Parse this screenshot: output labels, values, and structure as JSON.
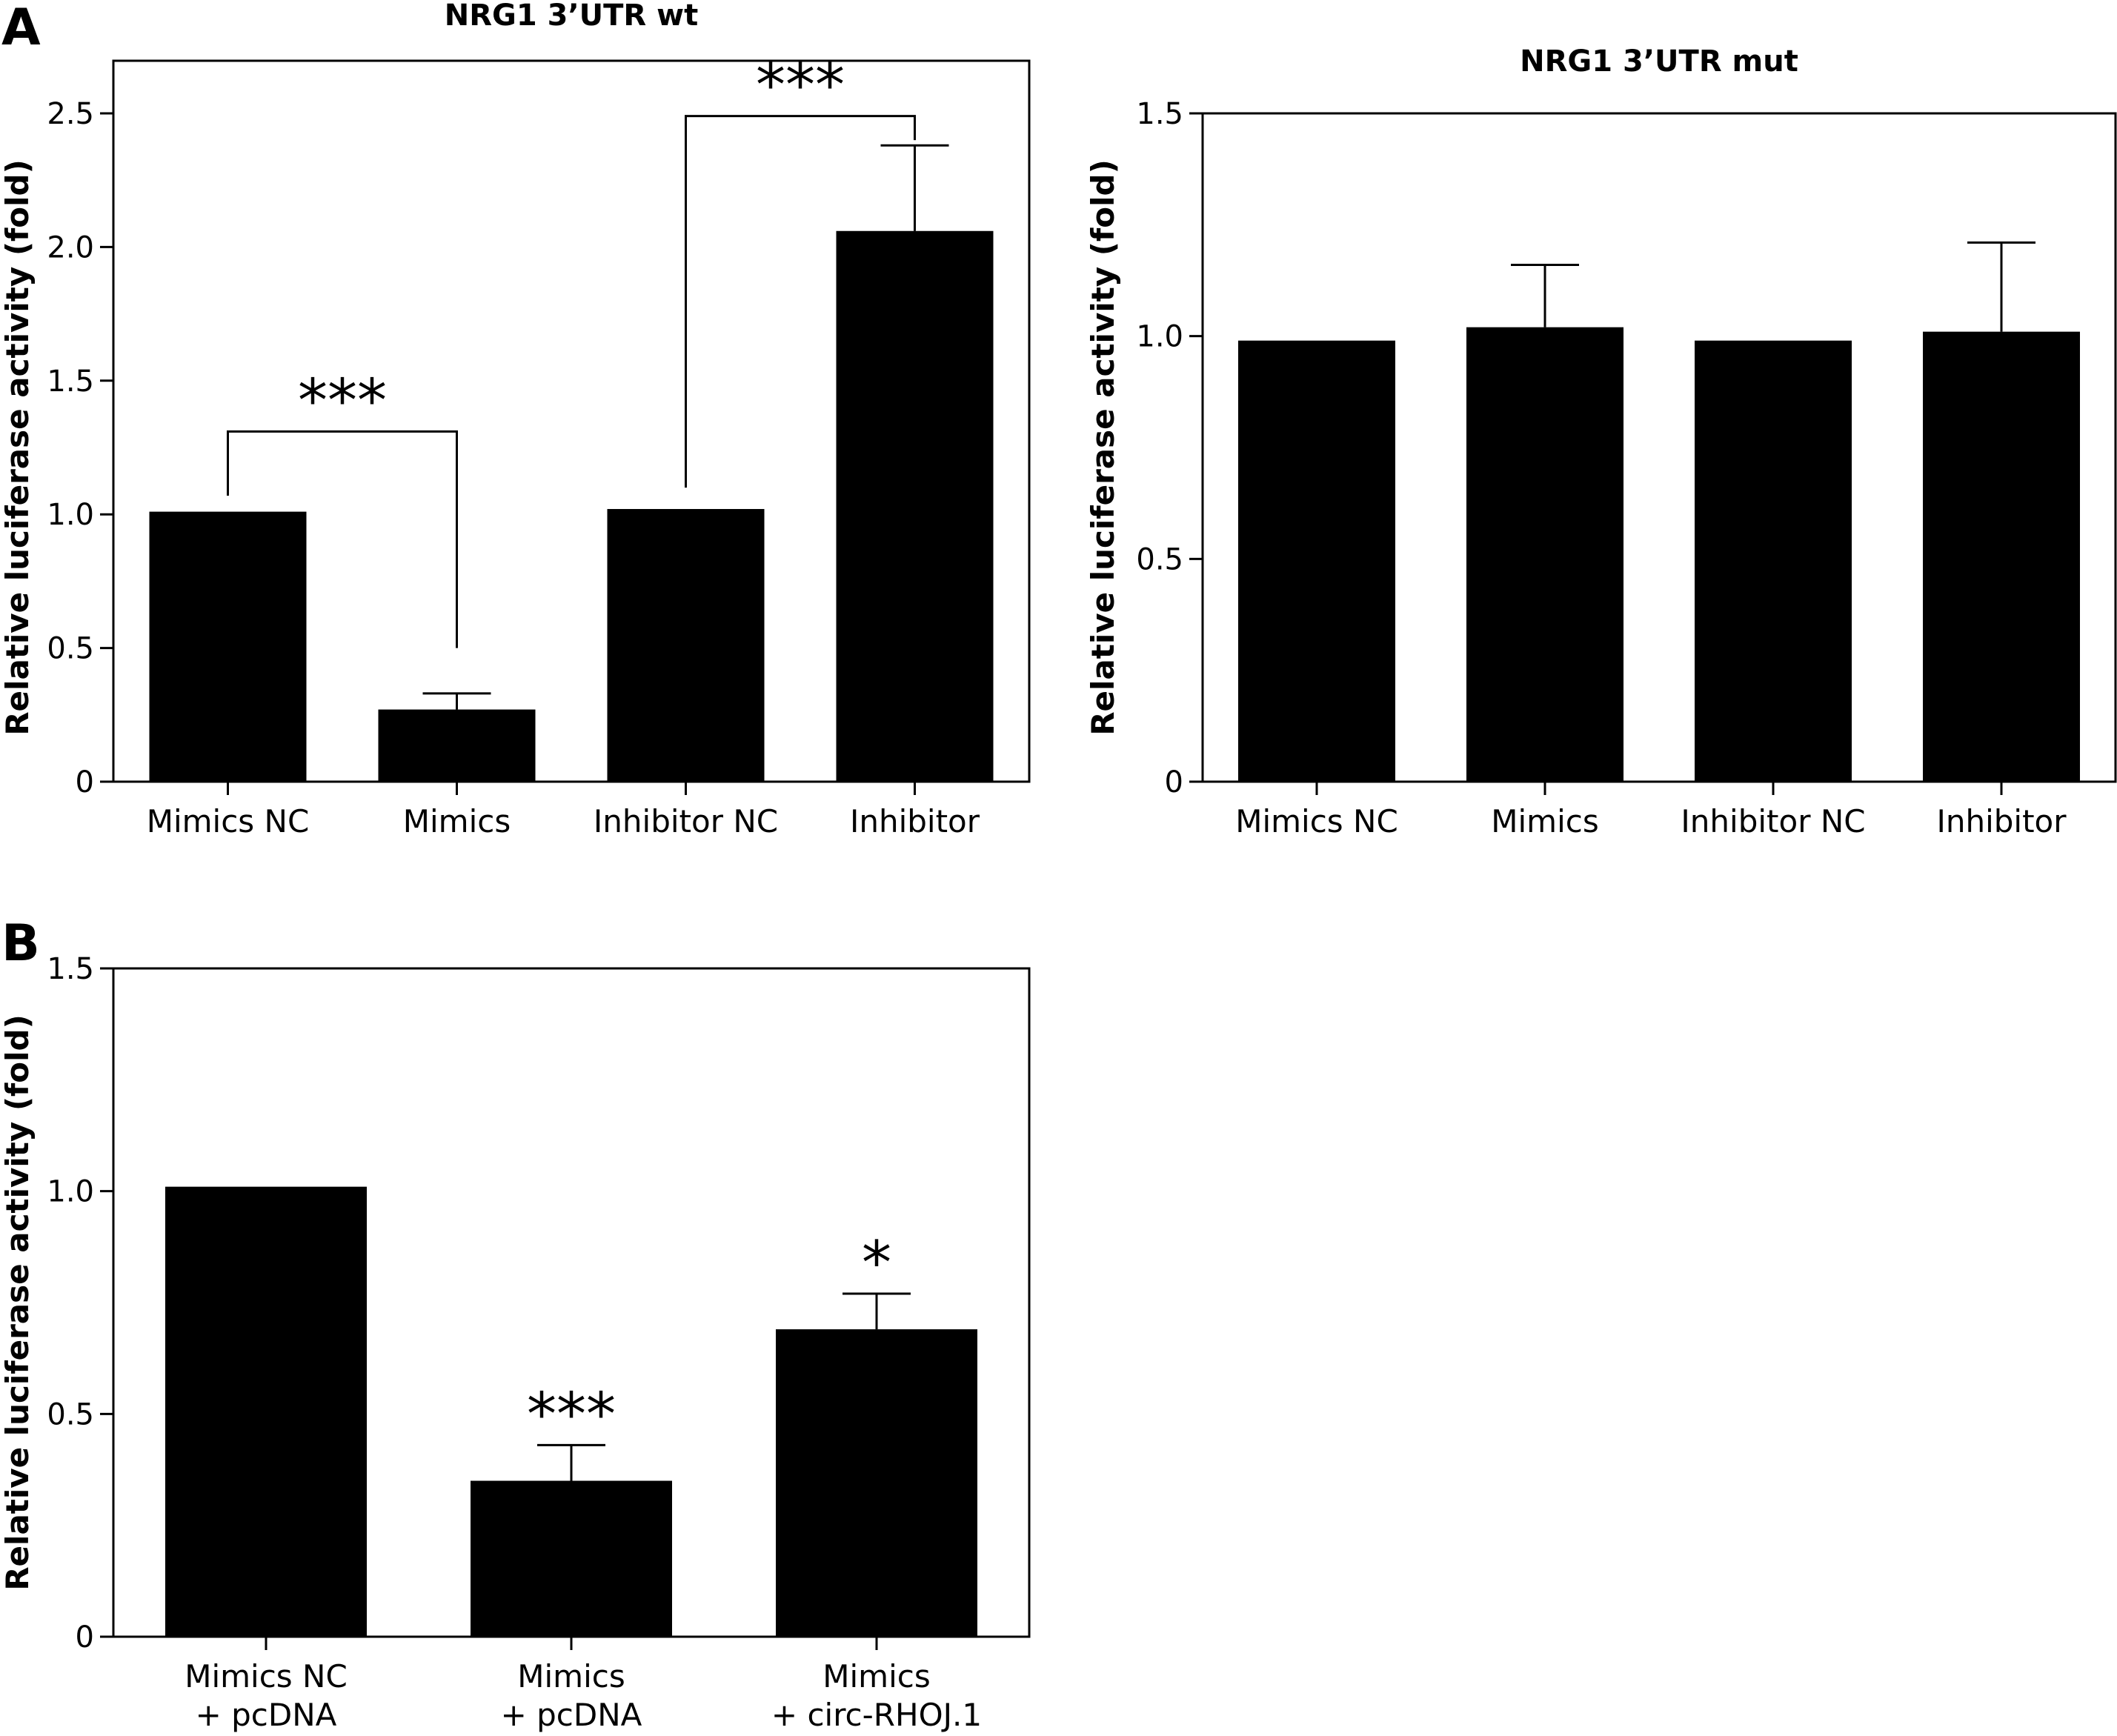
{
  "panels": {
    "a": {
      "letter": "A"
    },
    "b": {
      "letter": "B"
    }
  },
  "chart_data": [
    {
      "id": "a_wt",
      "type": "bar",
      "title": "NRG1 3’UTR wt",
      "ylabel": "Relative luciferase activity (fold)",
      "xlabel": "",
      "categories": [
        [
          "Mimics NC"
        ],
        [
          "Mimics"
        ],
        [
          "Inhibitor NC"
        ],
        [
          "Inhibitor"
        ]
      ],
      "values": [
        1.01,
        0.27,
        1.02,
        2.06
      ],
      "errors": [
        0,
        0.06,
        0,
        0.32
      ],
      "ylim": [
        0,
        2.7
      ],
      "yticks": [
        {
          "v": 0,
          "label": "0"
        },
        {
          "v": 0.5,
          "label": "0.5"
        },
        {
          "v": 1.0,
          "label": "1.0"
        },
        {
          "v": 1.5,
          "label": "1.5"
        },
        {
          "v": 2.0,
          "label": "2.0"
        },
        {
          "v": 2.5,
          "label": "2.5"
        }
      ],
      "brackets": [
        {
          "from": 0,
          "to": 1,
          "left_start": 1.07,
          "right_start": 0.5,
          "top": 1.31,
          "label": "***"
        },
        {
          "from": 2,
          "to": 3,
          "left_start": 1.1,
          "right_start": 2.4,
          "top": 2.49,
          "label": "***"
        }
      ],
      "stars": [],
      "grid": false
    },
    {
      "id": "a_mut",
      "type": "bar",
      "title": "NRG1 3’UTR mut",
      "ylabel": "Relative luciferase activity (fold)",
      "xlabel": "",
      "categories": [
        [
          "Mimics NC"
        ],
        [
          "Mimics"
        ],
        [
          "Inhibitor NC"
        ],
        [
          "Inhibitor"
        ]
      ],
      "values": [
        0.99,
        1.02,
        0.99,
        1.01
      ],
      "errors": [
        0,
        0.14,
        0,
        0.2
      ],
      "ylim": [
        0,
        1.5
      ],
      "yticks": [
        {
          "v": 0,
          "label": "0"
        },
        {
          "v": 0.5,
          "label": "0.5"
        },
        {
          "v": 1.0,
          "label": "1.0"
        },
        {
          "v": 1.5,
          "label": "1.5"
        }
      ],
      "brackets": [],
      "stars": [],
      "grid": false
    },
    {
      "id": "b",
      "type": "bar",
      "title": "",
      "ylabel": "Relative luciferase activity (fold)",
      "xlabel": "",
      "categories": [
        [
          "Mimics NC",
          "+ pcDNA"
        ],
        [
          "Mimics",
          "+  pcDNA"
        ],
        [
          "Mimics",
          "+ circ-RHOJ.1"
        ]
      ],
      "values": [
        1.01,
        0.35,
        0.69
      ],
      "errors": [
        0,
        0.08,
        0.08
      ],
      "ylim": [
        0,
        1.5
      ],
      "yticks": [
        {
          "v": 0,
          "label": "0"
        },
        {
          "v": 0.5,
          "label": "0.5"
        },
        {
          "v": 1.0,
          "label": "1.0"
        },
        {
          "v": 1.5,
          "label": "1.5"
        }
      ],
      "brackets": [],
      "stars": [
        {
          "bar": 1,
          "label": "***"
        },
        {
          "bar": 2,
          "label": "*"
        }
      ],
      "grid": false
    }
  ]
}
